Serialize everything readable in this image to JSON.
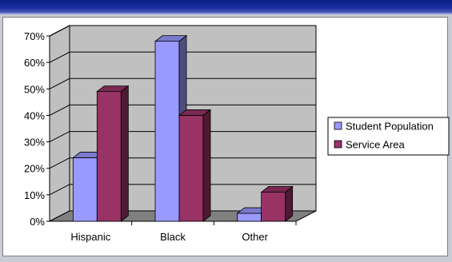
{
  "chart_data": {
    "type": "bar",
    "categories": [
      "Hispanic",
      "Black",
      "Other"
    ],
    "series": [
      {
        "name": "Student Population",
        "values": [
          24,
          68,
          3
        ],
        "color": "#9999ff"
      },
      {
        "name": "Service Area",
        "values": [
          49,
          40,
          11
        ],
        "color": "#993366"
      }
    ],
    "y_ticks": [
      "0%",
      "10%",
      "20%",
      "30%",
      "40%",
      "50%",
      "60%",
      "70%"
    ],
    "ylim": [
      0,
      70
    ],
    "grid": true,
    "legend_position": "right",
    "style": "3d-clustered-column",
    "wall_color": "#c0c0c0",
    "floor_color": "#808080"
  }
}
